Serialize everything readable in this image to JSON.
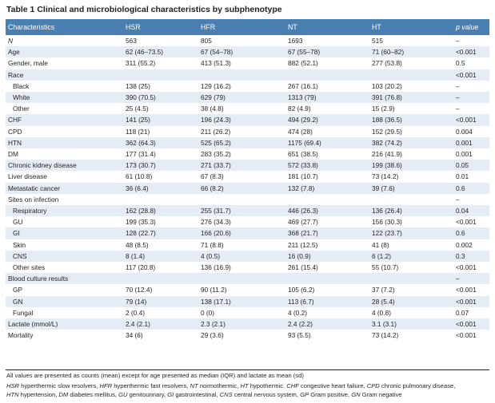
{
  "title": "Table 1  Clinical and microbiological characteristics by subphenotype",
  "columns": [
    "Characteristics",
    "HSR",
    "HFR",
    "NT",
    "HT",
    "p value"
  ],
  "rows": [
    {
      "label": "N",
      "italic": true,
      "indent": false,
      "shade": false,
      "cells": [
        "563",
        "805",
        "1693",
        "515",
        "–"
      ]
    },
    {
      "label": "Age",
      "indent": false,
      "shade": true,
      "cells": [
        "62 (46–73.5)",
        "67 (54–78)",
        "67 (55–78)",
        "71 (60–82)",
        "<0.001"
      ]
    },
    {
      "label": "Gender, male",
      "indent": false,
      "shade": false,
      "cells": [
        "311 (55.2)",
        "413 (51.3)",
        "882 (52.1)",
        "277 (53.8)",
        "0.5"
      ]
    },
    {
      "label": "Race",
      "indent": false,
      "shade": true,
      "cells": [
        "",
        "",
        "",
        "",
        "<0.001"
      ]
    },
    {
      "label": "Black",
      "indent": true,
      "shade": false,
      "cells": [
        "138 (25)",
        "129 (16.2)",
        "267 (16.1)",
        "103 (20.2)",
        "–"
      ]
    },
    {
      "label": "White",
      "indent": true,
      "shade": true,
      "cells": [
        "390 (70.5)",
        "629 (79)",
        "1313 (79)",
        "391 (76.8)",
        "–"
      ]
    },
    {
      "label": "Other",
      "indent": true,
      "shade": false,
      "cells": [
        "25 (4.5)",
        "38 (4.8)",
        "82 (4.9)",
        "15 (2.9)",
        "–"
      ]
    },
    {
      "label": "CHF",
      "indent": false,
      "shade": true,
      "cells": [
        "141 (25)",
        "196 (24.3)",
        "494 (29.2)",
        "188 (36.5)",
        "<0.001"
      ]
    },
    {
      "label": "CPD",
      "indent": false,
      "shade": false,
      "cells": [
        "118 (21)",
        "211 (26.2)",
        "474 (28)",
        "152 (29.5)",
        "0.004"
      ]
    },
    {
      "label": "HTN",
      "indent": false,
      "shade": true,
      "cells": [
        "362 (64.3)",
        "525 (65.2)",
        "1175 (69.4)",
        "382 (74.2)",
        "0.001"
      ]
    },
    {
      "label": "DM",
      "indent": false,
      "shade": false,
      "cells": [
        "177 (31.4)",
        "283 (35.2)",
        "651 (38.5)",
        "216 (41.9)",
        "0.001"
      ]
    },
    {
      "label": "Chronic kidney disease",
      "indent": false,
      "shade": true,
      "cells": [
        "173 (30.7)",
        "271 (33.7)",
        "572 (33.8)",
        "199 (38.6)",
        "0.05"
      ]
    },
    {
      "label": "Liver disease",
      "indent": false,
      "shade": false,
      "cells": [
        "61 (10.8)",
        "67 (8.3)",
        "181 (10.7)",
        "73 (14.2)",
        "0.01"
      ]
    },
    {
      "label": "Metastatic cancer",
      "indent": false,
      "shade": true,
      "cells": [
        "36 (6.4)",
        "66 (8.2)",
        "132 (7.8)",
        "39 (7.6)",
        "0.6"
      ]
    },
    {
      "label": "Sites on infection",
      "indent": false,
      "shade": false,
      "cells": [
        "",
        "",
        "",
        "",
        "–"
      ]
    },
    {
      "label": "Respiratory",
      "indent": true,
      "shade": true,
      "cells": [
        "162 (28.8)",
        "255 (31.7)",
        "446 (26.3)",
        "136 (26.4)",
        "0.04"
      ]
    },
    {
      "label": "GU",
      "indent": true,
      "shade": false,
      "cells": [
        "199 (35.3)",
        "276 (34.3)",
        "469 (27.7)",
        "156 (30.3)",
        "<0.001"
      ]
    },
    {
      "label": "GI",
      "indent": true,
      "shade": true,
      "cells": [
        "128 (22.7)",
        "166 (20.6)",
        "368 (21.7)",
        "122 (23.7)",
        "0.6"
      ]
    },
    {
      "label": "Skin",
      "indent": true,
      "shade": false,
      "cells": [
        "48 (8.5)",
        "71 (8.8)",
        "211 (12.5)",
        "41 (8)",
        "0.002"
      ]
    },
    {
      "label": "CNS",
      "indent": true,
      "shade": true,
      "cells": [
        "8 (1.4)",
        "4 (0.5)",
        "16 (0.9)",
        "6 (1.2)",
        "0.3"
      ]
    },
    {
      "label": "Other sites",
      "indent": true,
      "shade": false,
      "cells": [
        "117 (20.8)",
        "136 (16.9)",
        "261 (15.4)",
        "55 (10.7)",
        "<0.001"
      ]
    },
    {
      "label": "Blood culture results",
      "indent": false,
      "shade": true,
      "cells": [
        "",
        "",
        "",
        "",
        "–"
      ]
    },
    {
      "label": "GP",
      "indent": true,
      "shade": false,
      "cells": [
        "70 (12.4)",
        "90 (11.2)",
        "105 (6.2)",
        "37 (7.2)",
        "<0.001"
      ]
    },
    {
      "label": "GN",
      "indent": true,
      "shade": true,
      "cells": [
        "79 (14)",
        "138 (17.1)",
        "113 (6.7)",
        "28 (5.4)",
        "<0.001"
      ]
    },
    {
      "label": "Fungal",
      "indent": true,
      "shade": false,
      "cells": [
        "2 (0.4)",
        "0 (0)",
        "4 (0.2)",
        "4 (0.8)",
        "0.07"
      ]
    },
    {
      "label": "Lactate (mmol/L)",
      "indent": false,
      "shade": true,
      "cells": [
        "2.4 (2.1)",
        "2.3 (2.1)",
        "2.4 (2.2)",
        "3.1 (3.1)",
        "<0.001"
      ]
    },
    {
      "label": "Mortality",
      "indent": false,
      "shade": false,
      "cells": [
        "34 (6)",
        "29 (3.6)",
        "93 (5.5)",
        "73 (14.2)",
        "<0.001"
      ]
    }
  ],
  "footnote": "All values are presented as counts (mean) except for age presented as median (IQR) and lactate as mean (sd)",
  "abbreviations": {
    "line1": [
      {
        "abbr": "HSR",
        "text": " hyperthermic slow resolvers, "
      },
      {
        "abbr": "HFR",
        "text": " hyperthermic fast resolvers, "
      },
      {
        "abbr": "NT",
        "text": " normothermic, "
      },
      {
        "abbr": "HT",
        "text": " hypothermic. "
      },
      {
        "abbr": "CHF",
        "text": " congestive heart failure, "
      },
      {
        "abbr": "CPD",
        "text": " chronic pulmonary disease,"
      }
    ],
    "line2": [
      {
        "abbr": "HTN",
        "text": " hypertension, "
      },
      {
        "abbr": "DM",
        "text": " diabetes mellitus, "
      },
      {
        "abbr": "GU",
        "text": " genitourinary, "
      },
      {
        "abbr": "GI",
        "text": " gastrointestinal, "
      },
      {
        "abbr": "CNS",
        "text": " central nervous system, "
      },
      {
        "abbr": "GP",
        "text": " Gram positive, "
      },
      {
        "abbr": "GN",
        "text": " Gram negative"
      }
    ]
  },
  "colors": {
    "header_bg": "#4a7fb2",
    "row_shade": "#e6ecf5",
    "text": "#231f20"
  }
}
